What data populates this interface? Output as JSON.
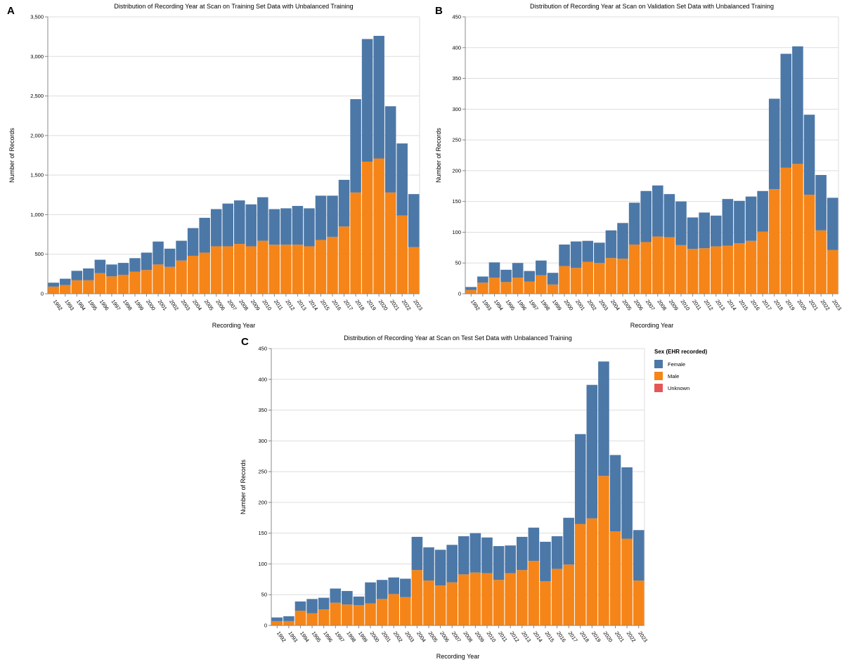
{
  "legend": {
    "title": "Sex (EHR recorded)",
    "items": [
      {
        "label": "Female",
        "color": "#4c78a8"
      },
      {
        "label": "Male",
        "color": "#f58518"
      },
      {
        "label": "Unknown",
        "color": "#e45756"
      }
    ]
  },
  "chart_data": [
    {
      "panel": "A",
      "type": "bar",
      "stacked": true,
      "title": "Distribution of Recording Year at Scan on Training Set Data with Unbalanced Training",
      "xlabel": "Recording Year",
      "ylabel": "Number of Records",
      "ylim": [
        0,
        3500
      ],
      "yticks": [
        0,
        500,
        1000,
        1500,
        2000,
        2500,
        3000,
        3500
      ],
      "ytick_labels": [
        "0",
        "500",
        "1,000",
        "1,500",
        "2,000",
        "2,500",
        "3,000",
        "3,500"
      ],
      "categories": [
        "1992",
        "1993",
        "1994",
        "1995",
        "1996",
        "1997",
        "1998",
        "1999",
        "2000",
        "2001",
        "2002",
        "2003",
        "2004",
        "2005",
        "2006",
        "2007",
        "2008",
        "2009",
        "2010",
        "2011",
        "2012",
        "2013",
        "2014",
        "2015",
        "2016",
        "2017",
        "2018",
        "2019",
        "2020",
        "2021",
        "2022",
        "2023"
      ],
      "series": [
        {
          "name": "Male",
          "values": [
            90,
            110,
            170,
            170,
            260,
            220,
            240,
            280,
            300,
            370,
            340,
            420,
            480,
            520,
            600,
            600,
            630,
            600,
            670,
            620,
            620,
            620,
            600,
            680,
            720,
            850,
            1280,
            1670,
            1710,
            1280,
            990,
            590
          ]
        },
        {
          "name": "Female",
          "values": [
            50,
            80,
            120,
            150,
            170,
            150,
            150,
            170,
            220,
            290,
            230,
            250,
            350,
            440,
            470,
            540,
            550,
            530,
            550,
            450,
            460,
            490,
            480,
            560,
            520,
            590,
            1180,
            1550,
            1550,
            1090,
            910,
            670
          ]
        },
        {
          "name": "Unknown",
          "values": [
            0,
            0,
            0,
            0,
            0,
            0,
            0,
            0,
            0,
            0,
            0,
            0,
            0,
            0,
            0,
            0,
            0,
            0,
            0,
            0,
            0,
            0,
            0,
            0,
            0,
            0,
            0,
            0,
            0,
            0,
            0,
            0
          ]
        }
      ]
    },
    {
      "panel": "B",
      "type": "bar",
      "stacked": true,
      "title": "Distribution of Recording Year at Scan on Validation Set Data with Unbalanced Training",
      "xlabel": "Recording Year",
      "ylabel": "Number of Records",
      "ylim": [
        0,
        450
      ],
      "yticks": [
        0,
        50,
        100,
        150,
        200,
        250,
        300,
        350,
        400,
        450
      ],
      "ytick_labels": [
        "0",
        "50",
        "100",
        "150",
        "200",
        "250",
        "300",
        "350",
        "400",
        "450"
      ],
      "categories": [
        "1992",
        "1993",
        "1994",
        "1995",
        "1996",
        "1997",
        "1998",
        "1999",
        "2000",
        "2001",
        "2002",
        "2003",
        "2004",
        "2005",
        "2006",
        "2007",
        "2008",
        "2009",
        "2010",
        "2011",
        "2012",
        "2013",
        "2014",
        "2015",
        "2016",
        "2017",
        "2018",
        "2019",
        "2020",
        "2021",
        "2022",
        "2023"
      ],
      "series": [
        {
          "name": "Male",
          "values": [
            6,
            18,
            26,
            19,
            26,
            20,
            30,
            15,
            45,
            42,
            52,
            50,
            58,
            57,
            80,
            84,
            93,
            92,
            79,
            73,
            74,
            77,
            78,
            82,
            86,
            101,
            170,
            205,
            211,
            161,
            103,
            71
          ]
        },
        {
          "name": "Female",
          "values": [
            5,
            10,
            25,
            20,
            24,
            17,
            24,
            19,
            35,
            43,
            34,
            33,
            45,
            58,
            68,
            83,
            83,
            70,
            71,
            51,
            58,
            50,
            76,
            69,
            72,
            66,
            147,
            185,
            191,
            130,
            90,
            85
          ]
        },
        {
          "name": "Unknown",
          "values": [
            0,
            0,
            0,
            0,
            0,
            0,
            0,
            0,
            0,
            0,
            0,
            0,
            0,
            0,
            0,
            0,
            0,
            0,
            0,
            0,
            0,
            0,
            0,
            0,
            0,
            0,
            0,
            0,
            0,
            0,
            0,
            0
          ]
        }
      ]
    },
    {
      "panel": "C",
      "type": "bar",
      "stacked": true,
      "title": "Distribution of Recording Year at Scan on Test Set Data with Unbalanced Training",
      "xlabel": "Recording Year",
      "ylabel": "Number of Records",
      "ylim": [
        0,
        450
      ],
      "yticks": [
        0,
        50,
        100,
        150,
        200,
        250,
        300,
        350,
        400,
        450
      ],
      "ytick_labels": [
        "0",
        "50",
        "100",
        "150",
        "200",
        "250",
        "300",
        "350",
        "400",
        "450"
      ],
      "categories": [
        "1992",
        "1993",
        "1994",
        "1995",
        "1996",
        "1997",
        "1998",
        "1999",
        "2000",
        "2001",
        "2002",
        "2003",
        "2004",
        "2005",
        "2006",
        "2007",
        "2008",
        "2009",
        "2010",
        "2011",
        "2012",
        "2013",
        "2014",
        "2015",
        "2016",
        "2017",
        "2018",
        "2019",
        "2020",
        "2021",
        "2022",
        "2023"
      ],
      "series": [
        {
          "name": "Male",
          "values": [
            7,
            7,
            24,
            20,
            26,
            37,
            34,
            33,
            36,
            43,
            51,
            46,
            90,
            73,
            65,
            70,
            83,
            86,
            85,
            74,
            85,
            90,
            105,
            72,
            92,
            99,
            165,
            174,
            243,
            153,
            141,
            73
          ]
        },
        {
          "name": "Female",
          "values": [
            6,
            8,
            15,
            23,
            19,
            23,
            22,
            14,
            34,
            31,
            27,
            30,
            54,
            54,
            58,
            61,
            62,
            64,
            58,
            55,
            45,
            54,
            54,
            64,
            53,
            76,
            146,
            217,
            186,
            124,
            116,
            82
          ]
        },
        {
          "name": "Unknown",
          "values": [
            0,
            0,
            0,
            0,
            0,
            0,
            0,
            0,
            0,
            0,
            0,
            0,
            0,
            0,
            0,
            0,
            0,
            0,
            0,
            0,
            0,
            0,
            0,
            0,
            0,
            0,
            0,
            0,
            0,
            0,
            0,
            0
          ]
        }
      ]
    }
  ]
}
